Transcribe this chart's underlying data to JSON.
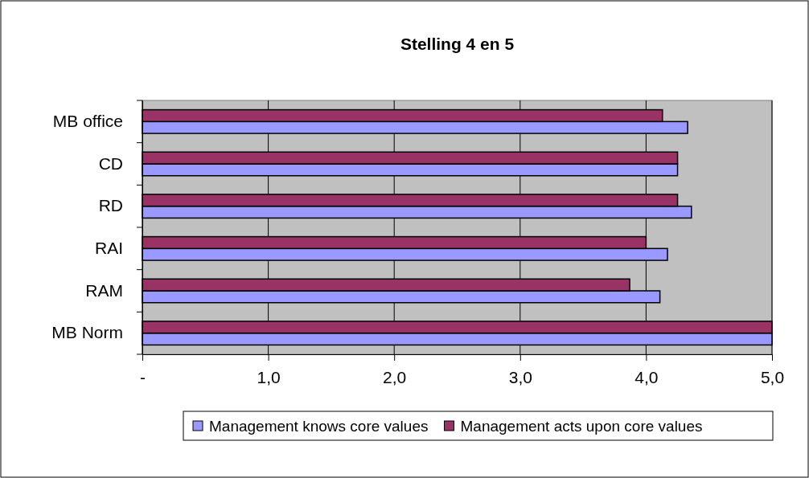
{
  "chart_data": {
    "type": "bar",
    "orientation": "horizontal",
    "title": "Stelling 4 en 5",
    "categories": [
      "MB office",
      "CD",
      "RD",
      "RAI",
      "RAM",
      "MB Norm"
    ],
    "series": [
      {
        "name": "Management knows core values",
        "color": "#9999ff",
        "values": [
          4.33,
          4.25,
          4.36,
          4.17,
          4.11,
          5
        ]
      },
      {
        "name": "Management acts upon core values",
        "color": "#993366",
        "values": [
          4.13,
          4.25,
          4.25,
          4.0,
          3.87,
          5
        ]
      }
    ],
    "xlim": [
      0,
      5
    ],
    "xticks": [
      {
        "value": 0,
        "label": "-"
      },
      {
        "value": 1,
        "label": "1,0"
      },
      {
        "value": 2,
        "label": "2,0"
      },
      {
        "value": 3,
        "label": "3,0"
      },
      {
        "value": 4,
        "label": "4,0"
      },
      {
        "value": 5,
        "label": "5,0"
      }
    ],
    "grid": "x",
    "legend": "bottom"
  }
}
